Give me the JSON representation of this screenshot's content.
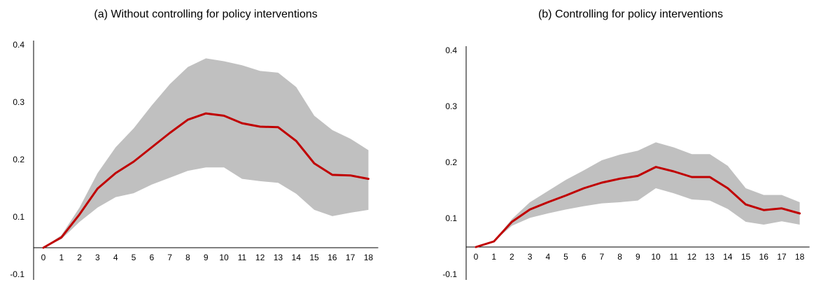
{
  "chart_data": [
    {
      "type": "line",
      "title": "(a) Without controlling for policy interventions",
      "xlabel": "",
      "ylabel": "",
      "x": [
        0,
        1,
        2,
        3,
        4,
        5,
        6,
        7,
        8,
        9,
        10,
        11,
        12,
        13,
        14,
        15,
        16,
        17,
        18
      ],
      "ylim": [
        -0.1,
        0.4
      ],
      "yticks": [
        "0.4",
        "0.3",
        "0.2",
        "0.1",
        "-0.1"
      ],
      "series": [
        {
          "values": [
            0.0,
            0.018,
            0.058,
            0.103,
            0.13,
            0.15,
            0.175,
            0.2,
            0.223,
            0.234,
            0.23,
            0.217,
            0.211,
            0.21,
            0.186,
            0.147,
            0.127,
            0.126,
            0.12
          ],
          "lower": [
            0.0,
            0.015,
            0.045,
            0.07,
            0.088,
            0.095,
            0.11,
            0.122,
            0.134,
            0.14,
            0.14,
            0.12,
            0.116,
            0.113,
            0.094,
            0.066,
            0.055,
            0.061,
            0.066
          ],
          "upper": [
            0.0,
            0.022,
            0.07,
            0.13,
            0.175,
            0.208,
            0.248,
            0.285,
            0.315,
            0.33,
            0.325,
            0.318,
            0.308,
            0.305,
            0.28,
            0.23,
            0.205,
            0.19,
            0.17
          ]
        }
      ],
      "grid": false,
      "colors": {
        "line": "#c00000",
        "band": "#c0c0c0",
        "axis": "#000000"
      }
    },
    {
      "type": "line",
      "title": "(b) Controlling for policy interventions",
      "xlabel": "",
      "ylabel": "",
      "x": [
        0,
        1,
        2,
        3,
        4,
        5,
        6,
        7,
        8,
        9,
        10,
        11,
        12,
        13,
        14,
        15,
        16,
        17,
        18
      ],
      "ylim": [
        -0.1,
        0.4
      ],
      "yticks": [
        "0.4",
        "0.3",
        "0.2",
        "0.1",
        "-0.1"
      ],
      "series": [
        {
          "values": [
            0.0,
            0.01,
            0.045,
            0.067,
            0.08,
            0.092,
            0.105,
            0.115,
            0.122,
            0.127,
            0.143,
            0.135,
            0.125,
            0.125,
            0.105,
            0.076,
            0.066,
            0.069,
            0.06
          ],
          "lower": [
            0.0,
            0.01,
            0.038,
            0.052,
            0.06,
            0.067,
            0.073,
            0.078,
            0.08,
            0.083,
            0.105,
            0.096,
            0.085,
            0.083,
            0.068,
            0.045,
            0.04,
            0.046,
            0.04
          ],
          "upper": [
            0.0,
            0.011,
            0.05,
            0.08,
            0.1,
            0.12,
            0.137,
            0.155,
            0.165,
            0.172,
            0.187,
            0.178,
            0.166,
            0.166,
            0.145,
            0.105,
            0.093,
            0.093,
            0.08
          ]
        }
      ],
      "grid": false,
      "colors": {
        "line": "#c00000",
        "band": "#c0c0c0",
        "axis": "#000000"
      }
    }
  ]
}
